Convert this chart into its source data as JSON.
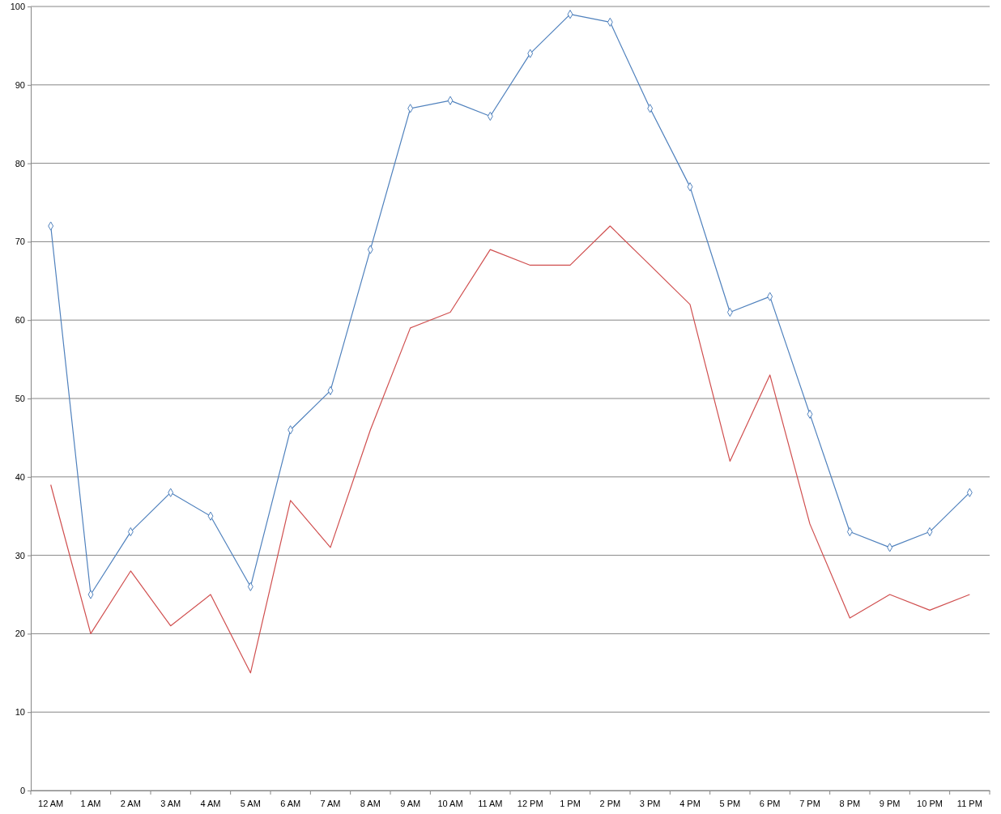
{
  "chart_data": {
    "type": "line",
    "categories": [
      "12 AM",
      "1 AM",
      "2 AM",
      "3 AM",
      "4 AM",
      "5 AM",
      "6 AM",
      "7 AM",
      "8 AM",
      "9 AM",
      "10 AM",
      "11 AM",
      "12 PM",
      "1 PM",
      "2 PM",
      "3 PM",
      "4 PM",
      "5 PM",
      "6 PM",
      "7 PM",
      "8 PM",
      "9 PM",
      "10 PM",
      "11 PM"
    ],
    "series": [
      {
        "color": "#4f81bd",
        "marker": "diamond",
        "values": [
          72,
          25,
          33,
          38,
          35,
          26,
          46,
          51,
          69,
          87,
          88,
          86,
          94,
          99,
          98,
          87,
          77,
          61,
          63,
          48,
          33,
          31,
          33,
          38
        ]
      },
      {
        "color": "#d04f4f",
        "marker": "none",
        "values": [
          39,
          20,
          28,
          21,
          25,
          15,
          37,
          31,
          46,
          59,
          61,
          69,
          67,
          67,
          72,
          67,
          62,
          42,
          53,
          34,
          22,
          25,
          23,
          25
        ]
      }
    ],
    "ylim": [
      0,
      100
    ],
    "yticks": [
      0,
      10,
      20,
      30,
      40,
      50,
      60,
      70,
      80,
      90,
      100
    ],
    "grid": "y",
    "line_style": "solid"
  }
}
